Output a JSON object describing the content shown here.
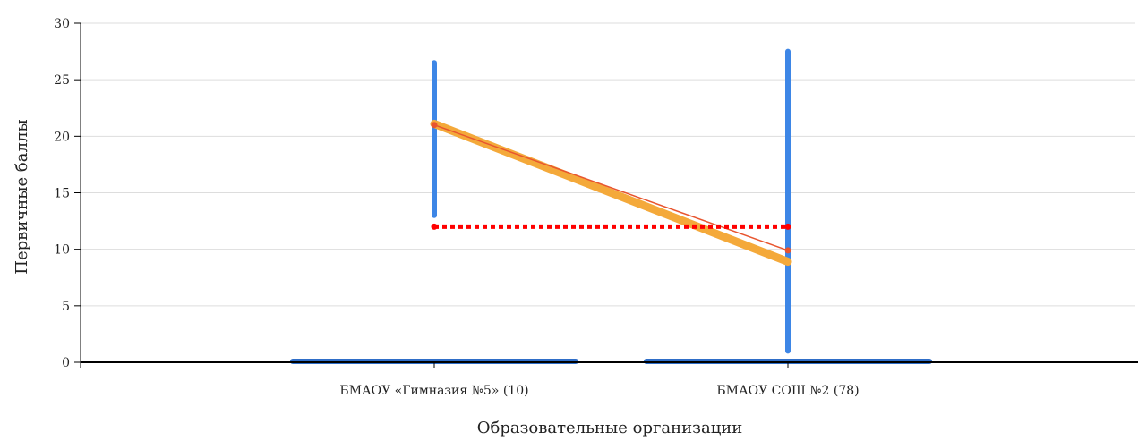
{
  "chart_data": {
    "type": "line",
    "ylabel": "Первичные баллы",
    "xlabel": "Образовательные организации",
    "ylim": [
      0,
      30
    ],
    "yticks": [
      0,
      5,
      10,
      15,
      20,
      25,
      30
    ],
    "grid": true,
    "categories": [
      "БМАОУ «Гимназия №5» (10)",
      "БМАОУ СОШ №2 (78)"
    ],
    "ranges": [
      {
        "min": 13,
        "max": 26.5
      },
      {
        "min": 1,
        "max": 27.5
      }
    ],
    "base_bars": [
      0,
      0
    ],
    "series": [
      {
        "values": [
          21.1,
          8.9
        ],
        "color": "#f4a93a",
        "style": "thick"
      },
      {
        "values": [
          21.0,
          9.9
        ],
        "color": "#e8552f",
        "style": "thin"
      },
      {
        "values": [
          12,
          12
        ],
        "color": "#ff0000",
        "style": "dotted"
      }
    ],
    "colors": {
      "range": "#3d86e6",
      "base": "#2f6ec8",
      "grid": "#dddddd",
      "axis": "#000000"
    }
  }
}
